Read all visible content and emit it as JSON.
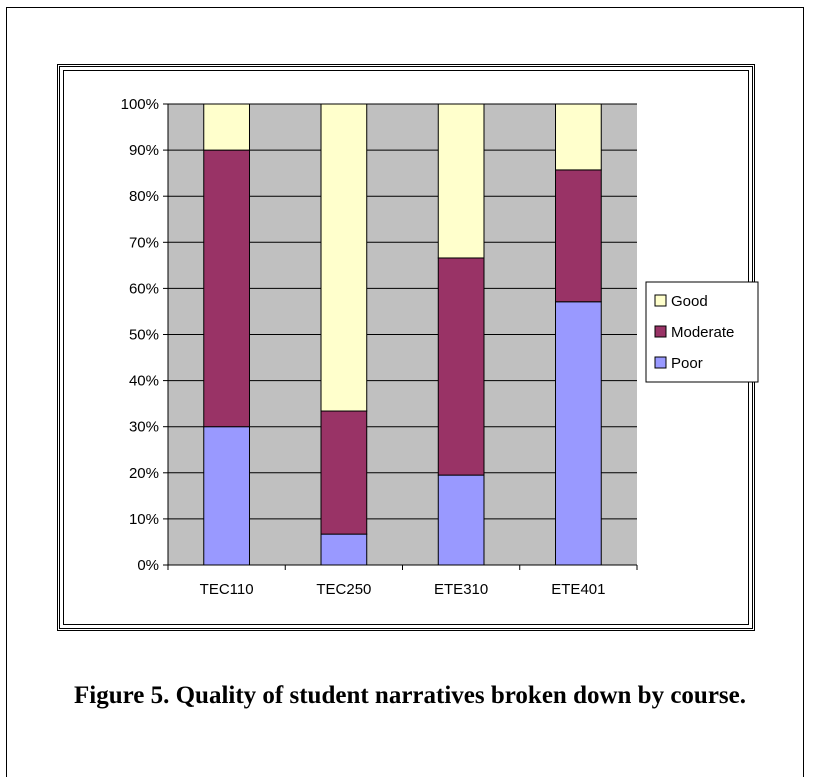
{
  "caption": "Figure 5.  Quality of student narratives broken down by course.",
  "chart_data": {
    "type": "bar",
    "stacked": true,
    "percent": true,
    "categories": [
      "TEC110",
      "TEC250",
      "ETE310",
      "ETE401"
    ],
    "series": [
      {
        "name": "Poor",
        "color": "#9999ff",
        "values": [
          30,
          6.7,
          19.5,
          57.1
        ]
      },
      {
        "name": "Moderate",
        "color": "#993366",
        "values": [
          60,
          26.7,
          47.1,
          28.6
        ]
      },
      {
        "name": "Good",
        "color": "#ffffcc",
        "values": [
          10,
          66.6,
          33.4,
          14.3
        ]
      }
    ],
    "ylim": [
      0,
      100
    ],
    "yticks": [
      "0%",
      "10%",
      "20%",
      "30%",
      "40%",
      "50%",
      "60%",
      "70%",
      "80%",
      "90%",
      "100%"
    ],
    "grid": true,
    "plot_background": "#c0c0c0",
    "legend_position": "right",
    "legend_order": [
      "Good",
      "Moderate",
      "Poor"
    ]
  }
}
